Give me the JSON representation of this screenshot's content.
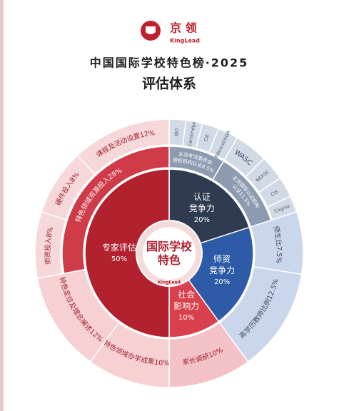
{
  "chart_data": {
    "type": "sunburst",
    "brand": {
      "name": "京 领",
      "latin": "KingLead"
    },
    "title": "中国国际学校特色榜·2025",
    "subtitle": "评估体系",
    "center_label": [
      "国际学校",
      "特色"
    ],
    "center_mark": "KingLead",
    "nodes": [
      {
        "name": [
          "认证",
          "竞争力"
        ],
        "value": 20,
        "value_label": "20%",
        "color": "#2f3b50",
        "children": [
          {
            "name": [
              "主流考试委员会",
              "授权机构认证"
            ],
            "value": 8.5,
            "value_label": "8.5%",
            "color": "#8c9bb0",
            "children": [
              {
                "name": "IBO",
                "value": 2,
                "color": "#d2dae5"
              },
              {
                "name": "Cambridge",
                "value": 2,
                "color": "#d2dae5"
              },
              {
                "name": "CIE",
                "value": 2,
                "color": "#d2dae5"
              },
              {
                "name": "Edexcel/AQA",
                "value": 2.5,
                "color": "#d2dae5"
              }
            ]
          },
          {
            "name": [
              "主流国际认证机构",
              "认证"
            ],
            "value": 11.5,
            "value_label": "11.5%",
            "color": "#8c9bb0",
            "children": [
              {
                "name": "WASC",
                "value": 4,
                "color": "#d2dae5"
              },
              {
                "name": "NEASC",
                "value": 3,
                "color": "#d2dae5"
              },
              {
                "name": "CIS",
                "value": 2.5,
                "color": "#d2dae5"
              },
              {
                "name": "Cognia",
                "value": 2,
                "color": "#d2dae5"
              }
            ]
          }
        ]
      },
      {
        "name": [
          "师资",
          "竞争力"
        ],
        "value": 20,
        "value_label": "20%",
        "color": "#2e5ba8",
        "children": [
          {
            "name": "师生比",
            "value": 7.5,
            "value_label": "7.5%",
            "color": "#c9d6ec"
          },
          {
            "name": "高学历教师比例",
            "value": 12.5,
            "value_label": "12.5%",
            "color": "#c9d6ec"
          }
        ]
      },
      {
        "name": [
          "社会",
          "影响力"
        ],
        "value": 10,
        "value_label": "10%",
        "color": "#d8404d",
        "children": [
          {
            "name": "家长调研",
            "value": 10,
            "value_label": "10%",
            "color": "#f4c2c6"
          }
        ]
      },
      {
        "name": "专家评估",
        "value": 50,
        "value_label": "50%",
        "color": "#b3212f",
        "children": [
          {
            "name": "特色领域办学成果",
            "value": 10,
            "value_label": "10%",
            "color": "#f6d0d3"
          },
          {
            "name": "特色定位及理念阐述",
            "value": 12,
            "value_label": "12%",
            "color": "#f6d0d3"
          },
          {
            "name": "特色领域资源投入",
            "value": 28,
            "value_label": "28%",
            "color": "#cf3b48",
            "children": [
              {
                "name": "师资投入",
                "value": 8,
                "value_label": "8%",
                "color": "#f7d8da"
              },
              {
                "name": "硬件投入",
                "value": 8,
                "value_label": "8%",
                "color": "#f7d8da"
              },
              {
                "name": "课程及活动设置",
                "value": 12,
                "value_label": "12%",
                "color": "#f7d8da"
              }
            ]
          }
        ]
      }
    ]
  }
}
